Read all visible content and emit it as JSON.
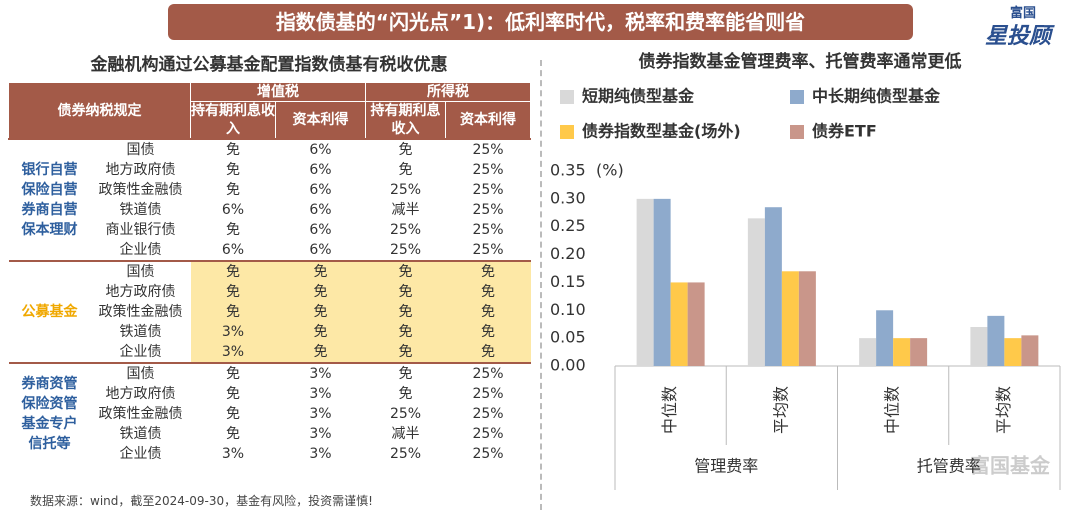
{
  "banner": "指数债基的“闪光点”1)：低利率时代，税率和费率能省则省",
  "logo": {
    "top": "富国",
    "main": "星投顾"
  },
  "left_title": "金融机构通过公募基金配置指数债基有税收优惠",
  "table": {
    "header": {
      "label": "债券纳税规定",
      "groups": [
        "增值税",
        "所得税"
      ],
      "columns": [
        "持有期利息收入",
        "资本利得",
        "持有期利息收入",
        "资本利得"
      ]
    },
    "sections": [
      {
        "label": "银行自营\n保险自营\n券商自营\n保本理财",
        "color": "#2e5f9e",
        "highlight": false,
        "rows": [
          [
            "国债",
            "免",
            "6%",
            "免",
            "25%"
          ],
          [
            "地方政府债",
            "免",
            "6%",
            "免",
            "25%"
          ],
          [
            "政策性金融债",
            "免",
            "6%",
            "25%",
            "25%"
          ],
          [
            "铁道债",
            "6%",
            "6%",
            "减半",
            "25%"
          ],
          [
            "商业银行债",
            "免",
            "6%",
            "25%",
            "25%"
          ],
          [
            "企业债",
            "6%",
            "6%",
            "25%",
            "25%"
          ]
        ]
      },
      {
        "label": "公募基金",
        "color": "#f0a800",
        "highlight": true,
        "rows": [
          [
            "国债",
            "免",
            "免",
            "免",
            "免"
          ],
          [
            "地方政府债",
            "免",
            "免",
            "免",
            "免"
          ],
          [
            "政策性金融债",
            "免",
            "免",
            "免",
            "免"
          ],
          [
            "铁道债",
            "3%",
            "免",
            "免",
            "免"
          ],
          [
            "企业债",
            "3%",
            "免",
            "免",
            "免"
          ]
        ]
      },
      {
        "label": "券商资管\n保险资管\n基金专户\n信托等",
        "color": "#2e5f9e",
        "highlight": false,
        "rows": [
          [
            "国债",
            "免",
            "3%",
            "免",
            "25%"
          ],
          [
            "地方政府债",
            "免",
            "3%",
            "免",
            "25%"
          ],
          [
            "政策性金融债",
            "免",
            "3%",
            "25%",
            "25%"
          ],
          [
            "铁道债",
            "免",
            "3%",
            "减半",
            "25%"
          ],
          [
            "企业债",
            "3%",
            "3%",
            "25%",
            "25%"
          ]
        ]
      }
    ]
  },
  "source": "数据来源：wind，截至2024-09-30，基金有风险，投资需谨慎!",
  "chart_data": {
    "type": "bar",
    "title": "债券指数基金管理费率、托管费率通常更低",
    "y_unit": "(%)",
    "categories": [
      "中位数",
      "平均数",
      "中位数",
      "平均数"
    ],
    "category_groups": [
      "管理费率",
      "托管费率"
    ],
    "series": [
      {
        "name": "短期纯债型基金",
        "color": "#d9d9d9",
        "values": [
          0.3,
          0.265,
          0.05,
          0.07
        ]
      },
      {
        "name": "中长期纯债型基金",
        "color": "#8eaacc",
        "values": [
          0.3,
          0.285,
          0.1,
          0.09
        ]
      },
      {
        "name": "债券指数型基金(场外)",
        "color": "#ffc94a",
        "values": [
          0.15,
          0.17,
          0.05,
          0.05
        ]
      },
      {
        "name": "债券ETF",
        "color": "#c9968a",
        "values": [
          0.15,
          0.17,
          0.05,
          0.055
        ]
      }
    ],
    "ylim": [
      0,
      0.35
    ],
    "yticks": [
      {
        "value": 0,
        "label": "0.00"
      },
      {
        "value": 0.05,
        "label": "0.05"
      },
      {
        "value": 0.1,
        "label": "0.10"
      },
      {
        "value": 0.15,
        "label": "0.15"
      },
      {
        "value": 0.2,
        "label": "0.20"
      },
      {
        "value": 0.25,
        "label": "0.25"
      },
      {
        "value": 0.3,
        "label": "0.30"
      },
      {
        "value": 0.35,
        "label": "0.35"
      }
    ],
    "grid": false
  },
  "watermark": "富国基金"
}
